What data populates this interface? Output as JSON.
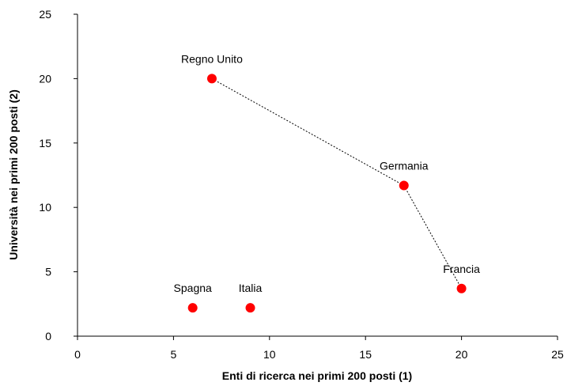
{
  "chart_data": {
    "type": "scatter",
    "title": "",
    "xlabel": "Enti di ricerca nei primi 200 posti (1)",
    "ylabel": "Università nei primi 200 posti (2)",
    "xlim": [
      0,
      25
    ],
    "ylim": [
      0,
      25
    ],
    "xticks": [
      0,
      5,
      10,
      15,
      20,
      25
    ],
    "yticks": [
      0,
      5,
      10,
      15,
      20,
      25
    ],
    "grid": false,
    "legend": "none",
    "marker_color": "#ff0000",
    "connector": {
      "style": "dotted",
      "color": "#000000",
      "connects": [
        "Regno Unito",
        "Germania",
        "Francia"
      ]
    },
    "points": [
      {
        "label": "Regno Unito",
        "x": 7,
        "y": 20
      },
      {
        "label": "Germania",
        "x": 17,
        "y": 11.7
      },
      {
        "label": "Francia",
        "x": 20,
        "y": 3.7
      },
      {
        "label": "Spagna",
        "x": 6,
        "y": 2.2
      },
      {
        "label": "Italia",
        "x": 9,
        "y": 2.2
      }
    ]
  }
}
